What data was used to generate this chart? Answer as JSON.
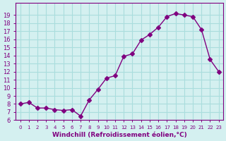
{
  "x": [
    0,
    1,
    2,
    3,
    4,
    5,
    6,
    7,
    8,
    9,
    10,
    11,
    12,
    13,
    14,
    15,
    16,
    17,
    18,
    19,
    20,
    21,
    22,
    23
  ],
  "y": [
    8.0,
    8.2,
    7.5,
    7.5,
    7.3,
    7.2,
    7.3,
    6.5,
    8.5,
    9.8,
    11.2,
    11.5,
    13.9,
    14.2,
    15.9,
    16.6,
    17.5,
    18.8,
    19.2,
    19.0,
    18.8,
    17.2,
    13.5,
    12.0
  ],
  "line_color": "#800080",
  "marker": "D",
  "marker_size": 3,
  "bg_color": "#d4f0f0",
  "grid_color": "#aadddd",
  "xlabel": "Windchill (Refroidissement éolien,°C)",
  "xlabel_color": "#800080",
  "tick_color": "#800080",
  "ylim": [
    6,
    20
  ],
  "xlim_min": -0.5,
  "xlim_max": 23.5,
  "yticks": [
    6,
    7,
    8,
    9,
    10,
    11,
    12,
    13,
    14,
    15,
    16,
    17,
    18,
    19
  ],
  "xticks": [
    0,
    1,
    2,
    3,
    4,
    5,
    6,
    7,
    8,
    9,
    10,
    11,
    12,
    13,
    14,
    15,
    16,
    17,
    18,
    19,
    20,
    21,
    22,
    23
  ]
}
